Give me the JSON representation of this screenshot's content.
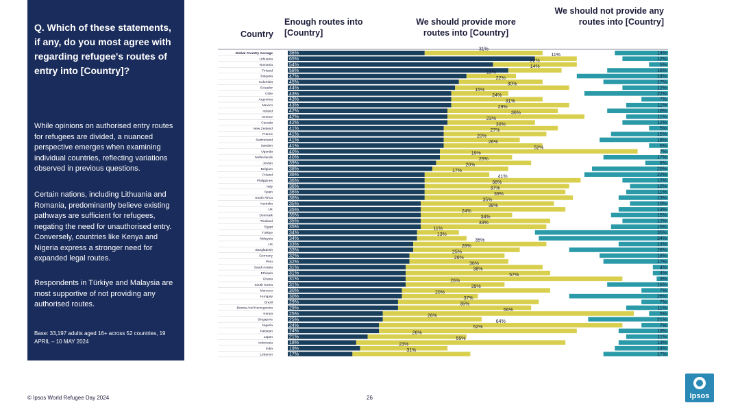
{
  "sidebar": {
    "question": "Q. Which of these statements, if any, do you most agree with regarding refugee's routes of entry into [Country]?",
    "paragraph_1": "While opinions on authorised entry routes for refugees are divided, a nuanced perspective emerges when examining individual countries, reflecting variations observed in previous questions.",
    "paragraph_2": "Certain nations, including Lithuania and Romania, predominantly believe existing pathways are sufficient for refugees, negating the need for unauthorised entry. Conversely, countries like Kenya and Nigeria express a stronger need for expanded legal routes.",
    "paragraph_3": "Respondents in Türkiye and Malaysia are most supportive of not providing any authorised routes.",
    "base": "Base: 33,197 adults aged 16+ across 52 countries, 19 APRIL – 10 MAY 2024"
  },
  "headers": {
    "country": "Country",
    "enough": "Enough routes into [Country]",
    "more": "We should provide more routes into [Country]",
    "not": "We should not provide any routes into [Country]"
  },
  "footer": {
    "source": "© Ipsos World Refugee Day 2024",
    "page": "26"
  },
  "logo": {
    "text": "Ipsos"
  },
  "colors": {
    "enough": "#1a3f5c",
    "more": "#d9cf4e",
    "not": "#2a9aa8",
    "sidebar": "#1a2c5b",
    "logo": "#2a8ab5"
  },
  "chart_data": {
    "type": "bar",
    "orientation": "horizontal-diverging",
    "series_names": [
      "Enough routes into [Country]",
      "We should provide more routes into [Country]",
      "We should not provide any routes into [Country]"
    ],
    "categories": [
      "Global Country Average",
      "Lithuania",
      "Romania",
      "Finland",
      "Bulgaria",
      "Colombia",
      "Ecuador",
      "Chile",
      "Argentina",
      "Mexico",
      "Ireland",
      "Greece",
      "Canada",
      "New Zealand",
      "France",
      "Switzerland",
      "Sweden",
      "Uganda",
      "Netherlands",
      "Jordan",
      "Belgium",
      "Poland",
      "Philippines",
      "Italy",
      "Spain",
      "South Africa",
      "Australia",
      "UK",
      "Denmark",
      "Thailand",
      "Egypt",
      "Türkiye",
      "Malaysia",
      "US",
      "Bangladesh",
      "Germany",
      "Peru",
      "Saudi Arabia",
      "Ethiopia",
      "Ghana",
      "South Korea",
      "Morocco",
      "Hungary",
      "Brazil",
      "Bosnia And Herzegovina",
      "Kenya",
      "Singapore",
      "Nigeria",
      "Pakistan",
      "Japan",
      "Indonesia",
      "India",
      "Lebanon"
    ],
    "enough": [
      36,
      65,
      54,
      58,
      47,
      45,
      44,
      43,
      43,
      43,
      42,
      42,
      42,
      41,
      41,
      41,
      41,
      40,
      40,
      39,
      38,
      36,
      36,
      36,
      36,
      36,
      35,
      35,
      35,
      35,
      35,
      34,
      34,
      33,
      33,
      32,
      32,
      31,
      31,
      31,
      31,
      30,
      30,
      29,
      29,
      25,
      25,
      24,
      24,
      21,
      18,
      19,
      17
    ],
    "more": [
      31,
      11,
      22,
      14,
      13,
      22,
      30,
      15,
      24,
      31,
      29,
      36,
      23,
      30,
      27,
      20,
      26,
      52,
      19,
      25,
      20,
      17,
      41,
      38,
      37,
      39,
      35,
      38,
      24,
      34,
      33,
      11,
      13,
      35,
      28,
      25,
      26,
      36,
      38,
      57,
      26,
      39,
      20,
      37,
      35,
      66,
      26,
      64,
      52,
      26,
      55,
      23,
      31
    ],
    "not": [
      14,
      12,
      5,
      16,
      24,
      17,
      12,
      22,
      7,
      11,
      16,
      11,
      12,
      5,
      15,
      18,
      5,
      2,
      17,
      6,
      20,
      22,
      12,
      10,
      11,
      13,
      10,
      13,
      15,
      12,
      15,
      35,
      34,
      13,
      26,
      18,
      17,
      4,
      4,
      3,
      16,
      7,
      26,
      7,
      11,
      5,
      21,
      7,
      13,
      11,
      13,
      14,
      17
    ],
    "label_format": "{v}%"
  }
}
